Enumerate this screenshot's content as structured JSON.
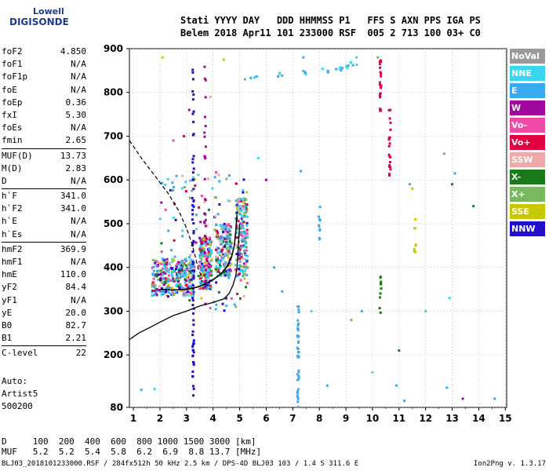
{
  "logo": {
    "line1": "Lowell",
    "line2": "DIGISONDE"
  },
  "header": {
    "row1": "Stati YYYY DAY   DDD HHMMSS P1   FFS S AXN PPS IGA PS",
    "row2": "Belem 2018 Apr11 101 233000 RSF  005 2 713 100 03+ C0"
  },
  "params": [
    {
      "label": "foF2",
      "value": "4.850"
    },
    {
      "label": "foF1",
      "value": "N/A"
    },
    {
      "label": "foF1p",
      "value": "N/A"
    },
    {
      "label": "foE",
      "value": "N/A"
    },
    {
      "label": "foEp",
      "value": "0.36"
    },
    {
      "label": "fxI",
      "value": "5.30"
    },
    {
      "label": "foEs",
      "value": "N/A"
    },
    {
      "label": "fmin",
      "value": "2.65"
    },
    {
      "sep": true
    },
    {
      "label": "MUF(D)",
      "value": "13.73"
    },
    {
      "label": "M(D)",
      "value": "2.83"
    },
    {
      "label": "D",
      "value": "N/A"
    },
    {
      "sep": true
    },
    {
      "label": "h`F",
      "value": "341.0"
    },
    {
      "label": "h`F2",
      "value": "341.0"
    },
    {
      "label": "h`E",
      "value": "N/A"
    },
    {
      "label": "h`Es",
      "value": "N/A"
    },
    {
      "sep": true
    },
    {
      "label": "hmF2",
      "value": "369.9"
    },
    {
      "label": "hmF1",
      "value": "N/A"
    },
    {
      "label": "hmE",
      "value": "110.0"
    },
    {
      "label": "yF2",
      "value": "84.4"
    },
    {
      "label": "yF1",
      "value": "N/A"
    },
    {
      "label": "yE",
      "value": "20.0"
    },
    {
      "label": "B0",
      "value": "82.7"
    },
    {
      "label": "B1",
      "value": "2.21"
    },
    {
      "sep": true
    },
    {
      "label": "C-level",
      "value": "22"
    }
  ],
  "auto": {
    "line1": "Auto:",
    "line2": "Artist5",
    "line3": "500200"
  },
  "legend": [
    {
      "label": "NoVal",
      "color": "#9a9a9a"
    },
    {
      "label": "NNE",
      "color": "#39d6f0"
    },
    {
      "label": "E",
      "color": "#3aaaf0"
    },
    {
      "label": "W",
      "color": "#a0089e"
    },
    {
      "label": "Vo-",
      "color": "#f04aa8"
    },
    {
      "label": "Vo+",
      "color": "#e00040"
    },
    {
      "label": "SSW",
      "color": "#f0a8a8"
    },
    {
      "label": "X-",
      "color": "#1a7a1a"
    },
    {
      "label": "X+",
      "color": "#78b860"
    },
    {
      "label": "SSE",
      "color": "#c8c800"
    },
    {
      "label": "NNW",
      "color": "#2010c8"
    }
  ],
  "dtable": {
    "row1": "D     100  200  400  600  800 1000 1500 3000 [km]",
    "row2": "MUF   5.2  5.2  5.4  5.8  6.2  6.9  8.8 13.7 [MHz]"
  },
  "footer": {
    "left": "BLJ03_2018101233000.RSF / 284fx512h 50 kHz 2.5 km / DPS-4D BLJ03 103 / 1.4 S 311.6 E",
    "right": "Ion2Png v. 1.3.17"
  },
  "chart_data": {
    "type": "scatter",
    "x_ticks": [
      "1",
      "2",
      "3",
      "4",
      "5",
      "6",
      "7",
      "8",
      "9",
      "10",
      "11",
      "12",
      "13",
      "14",
      "15"
    ],
    "y_ticks": [
      "80",
      "200",
      "300",
      "400",
      "500",
      "600",
      "700",
      "800",
      "900"
    ],
    "xlim": [
      0.85,
      15.05
    ],
    "ylim": [
      80,
      900
    ],
    "grid": true,
    "profile_curve": [
      [
        0.85,
        235
      ],
      [
        1.2,
        250
      ],
      [
        1.6,
        262
      ],
      [
        2.0,
        275
      ],
      [
        2.5,
        290
      ],
      [
        3.0,
        300
      ],
      [
        3.5,
        312
      ],
      [
        4.0,
        320
      ],
      [
        4.4,
        328
      ],
      [
        4.6,
        340
      ],
      [
        4.75,
        360
      ],
      [
        4.85,
        380
      ],
      [
        4.9,
        400
      ],
      [
        4.93,
        430
      ],
      [
        4.96,
        460
      ],
      [
        5.0,
        500
      ]
    ],
    "dashed_curve": [
      [
        0.85,
        690
      ],
      [
        1.3,
        650
      ],
      [
        1.8,
        610
      ],
      [
        2.3,
        570
      ],
      [
        2.7,
        530
      ],
      [
        3.0,
        490
      ],
      [
        3.2,
        455
      ],
      [
        3.35,
        420
      ],
      [
        3.45,
        395
      ],
      [
        3.6,
        375
      ]
    ],
    "trace_curve": [
      [
        2.0,
        350
      ],
      [
        2.5,
        348
      ],
      [
        3.0,
        350
      ],
      [
        3.4,
        355
      ],
      [
        3.7,
        362
      ],
      [
        4.0,
        372
      ],
      [
        4.3,
        385
      ],
      [
        4.5,
        400
      ],
      [
        4.7,
        425
      ],
      [
        4.8,
        450
      ],
      [
        4.85,
        480
      ],
      [
        4.9,
        520
      ]
    ],
    "echo_clusters": [
      {
        "x": [
          1.7,
          3.3
        ],
        "y": [
          335,
          420
        ],
        "count": 320
      },
      {
        "x": [
          3.5,
          3.95
        ],
        "y": [
          350,
          470
        ],
        "count": 200
      },
      {
        "x": [
          4.1,
          4.7
        ],
        "y": [
          380,
          500
        ],
        "count": 180
      },
      {
        "x": [
          4.85,
          5.3
        ],
        "y": [
          380,
          560
        ],
        "count": 180
      },
      {
        "x": [
          2.0,
          5.3
        ],
        "y": [
          300,
          620
        ],
        "count": 150
      }
    ],
    "vertical_traces": [
      {
        "x": 3.25,
        "y": [
          80,
          870
        ],
        "series": "NNW",
        "count": 70
      },
      {
        "x": 3.7,
        "y": [
          330,
          860
        ],
        "series": "W",
        "count": 30
      },
      {
        "x": 7.2,
        "y": [
          80,
          320
        ],
        "series": "E",
        "count": 40
      },
      {
        "x": 10.3,
        "y": [
          730,
          880
        ],
        "series": "Vo+",
        "count": 20
      },
      {
        "x": 10.65,
        "y": [
          610,
          760
        ],
        "series": "Vo+",
        "count": 20
      },
      {
        "x": 10.3,
        "y": [
          280,
          380
        ],
        "series": "X-",
        "count": 10
      },
      {
        "x": 8.0,
        "y": [
          460,
          550
        ],
        "series": "E",
        "count": 10
      },
      {
        "x": 11.6,
        "y": [
          430,
          520
        ],
        "series": "SSE",
        "count": 8
      }
    ],
    "upper_track": [
      [
        5.5,
        835
      ],
      [
        6.5,
        840
      ],
      [
        7.5,
        845
      ],
      [
        8.2,
        850
      ],
      [
        8.7,
        855
      ],
      [
        9.0,
        860
      ],
      [
        9.3,
        865
      ]
    ],
    "scatter_noise": [
      [
        1.3,
        120,
        "E"
      ],
      [
        1.8,
        122,
        "NNE"
      ],
      [
        2.1,
        880,
        "SSE"
      ],
      [
        2.5,
        690,
        "Vo-"
      ],
      [
        2.9,
        700,
        "Vo+"
      ],
      [
        3.1,
        760,
        "W"
      ],
      [
        3.9,
        790,
        "SSW"
      ],
      [
        4.4,
        875,
        "SSE"
      ],
      [
        5.2,
        830,
        "NoVal"
      ],
      [
        5.7,
        650,
        "NNE"
      ],
      [
        6.0,
        600,
        "W"
      ],
      [
        6.3,
        400,
        "E"
      ],
      [
        6.6,
        345,
        "E"
      ],
      [
        7.3,
        620,
        "E"
      ],
      [
        7.4,
        880,
        "E"
      ],
      [
        7.7,
        300,
        "NNE"
      ],
      [
        8.3,
        130,
        "E"
      ],
      [
        9.2,
        280,
        "X+"
      ],
      [
        9.6,
        300,
        "E"
      ],
      [
        10.0,
        160,
        "NNE"
      ],
      [
        10.9,
        130,
        "E"
      ],
      [
        11.0,
        210,
        "X-"
      ],
      [
        11.2,
        95,
        "E"
      ],
      [
        11.4,
        590,
        "E"
      ],
      [
        12.0,
        300,
        "NNE"
      ],
      [
        12.8,
        125,
        "E"
      ],
      [
        12.9,
        330,
        "NNE"
      ],
      [
        13.0,
        590,
        "X-"
      ],
      [
        13.1,
        615,
        "E"
      ],
      [
        13.4,
        100,
        "W"
      ],
      [
        13.8,
        540,
        "X-"
      ],
      [
        14.6,
        100,
        "E"
      ],
      [
        12.7,
        660,
        "X+"
      ],
      [
        11.5,
        580,
        "SSE"
      ],
      [
        10.2,
        880,
        "X+"
      ],
      [
        9.4,
        880,
        "NNE"
      ]
    ]
  }
}
